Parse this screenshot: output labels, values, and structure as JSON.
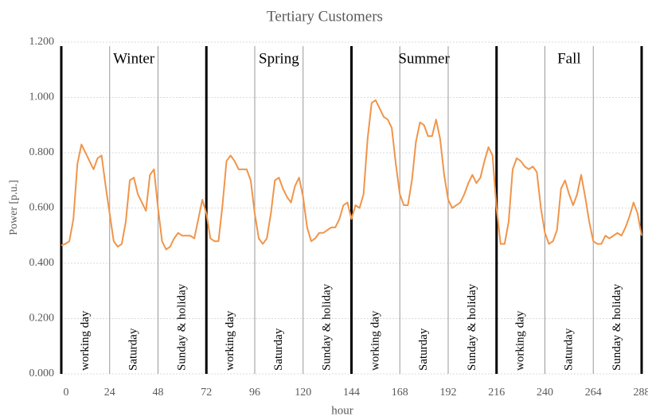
{
  "chart_data": {
    "type": "line",
    "title": "Tertiary Customers",
    "x_label": "hour",
    "y_label": "Power [p.u.]",
    "seasons": [
      "Winter",
      "Spring",
      "Summer",
      "Fall"
    ],
    "day_types": [
      "working day",
      "Saturday",
      "Sunday & holiday"
    ],
    "xlim": [
      0,
      288
    ],
    "xticks": [
      0,
      24,
      48,
      72,
      96,
      120,
      144,
      168,
      192,
      216,
      240,
      264,
      288
    ],
    "ylim": [
      0,
      1.2
    ],
    "yticks": [
      {
        "value": 0,
        "label": "0.000"
      },
      {
        "value": 0.2,
        "label": "0.200"
      },
      {
        "value": 0.4,
        "label": "0.400"
      },
      {
        "value": 0.6,
        "label": "0.600"
      },
      {
        "value": 0.8,
        "label": "0.800"
      },
      {
        "value": 1,
        "label": "1.000"
      },
      {
        "value": 1.2,
        "label": "1.200"
      }
    ],
    "grid": true,
    "x": [
      0,
      2,
      4,
      6,
      8,
      10,
      12,
      14,
      16,
      18,
      20,
      22,
      24,
      26,
      28,
      30,
      32,
      34,
      36,
      38,
      40,
      42,
      44,
      46,
      48,
      50,
      52,
      54,
      56,
      58,
      60,
      62,
      64,
      66,
      68,
      70,
      72,
      74,
      76,
      78,
      80,
      82,
      84,
      86,
      88,
      90,
      92,
      94,
      96,
      98,
      100,
      102,
      104,
      106,
      108,
      110,
      112,
      114,
      116,
      118,
      120,
      122,
      124,
      126,
      128,
      130,
      132,
      134,
      136,
      138,
      140,
      142,
      144,
      146,
      148,
      150,
      152,
      154,
      156,
      158,
      160,
      162,
      164,
      166,
      168,
      170,
      172,
      174,
      176,
      178,
      180,
      182,
      184,
      186,
      188,
      190,
      192,
      194,
      196,
      198,
      200,
      202,
      204,
      206,
      208,
      210,
      212,
      214,
      216,
      218,
      220,
      222,
      224,
      226,
      228,
      230,
      232,
      234,
      236,
      238,
      240,
      242,
      244,
      246,
      248,
      250,
      252,
      254,
      256,
      258,
      260,
      262,
      264,
      266,
      268,
      270,
      272,
      274,
      276,
      278,
      280,
      282,
      284,
      286,
      288
    ],
    "series": [
      {
        "name": "Tertiary",
        "color": "#f0954a",
        "values": [
          0.465,
          0.47,
          0.48,
          0.56,
          0.76,
          0.83,
          0.8,
          0.77,
          0.74,
          0.78,
          0.79,
          0.68,
          0.58,
          0.48,
          0.46,
          0.47,
          0.55,
          0.7,
          0.71,
          0.65,
          0.62,
          0.59,
          0.72,
          0.74,
          0.6,
          0.48,
          0.45,
          0.46,
          0.49,
          0.51,
          0.5,
          0.5,
          0.5,
          0.49,
          0.56,
          0.63,
          0.58,
          0.49,
          0.48,
          0.48,
          0.61,
          0.77,
          0.79,
          0.77,
          0.74,
          0.74,
          0.74,
          0.7,
          0.58,
          0.49,
          0.47,
          0.49,
          0.58,
          0.7,
          0.71,
          0.67,
          0.64,
          0.62,
          0.68,
          0.71,
          0.64,
          0.53,
          0.48,
          0.49,
          0.51,
          0.51,
          0.52,
          0.53,
          0.53,
          0.56,
          0.61,
          0.62,
          0.56,
          0.61,
          0.6,
          0.65,
          0.85,
          0.98,
          0.99,
          0.96,
          0.93,
          0.92,
          0.89,
          0.76,
          0.65,
          0.61,
          0.61,
          0.7,
          0.84,
          0.91,
          0.9,
          0.86,
          0.86,
          0.92,
          0.85,
          0.72,
          0.63,
          0.6,
          0.61,
          0.62,
          0.65,
          0.69,
          0.72,
          0.69,
          0.71,
          0.77,
          0.82,
          0.79,
          0.6,
          0.47,
          0.47,
          0.55,
          0.74,
          0.78,
          0.77,
          0.75,
          0.74,
          0.75,
          0.73,
          0.6,
          0.51,
          0.47,
          0.48,
          0.52,
          0.67,
          0.7,
          0.65,
          0.61,
          0.65,
          0.72,
          0.64,
          0.55,
          0.48,
          0.47,
          0.47,
          0.5,
          0.49,
          0.5,
          0.51,
          0.5,
          0.53,
          0.57,
          0.62,
          0.58,
          0.5
        ]
      }
    ]
  }
}
